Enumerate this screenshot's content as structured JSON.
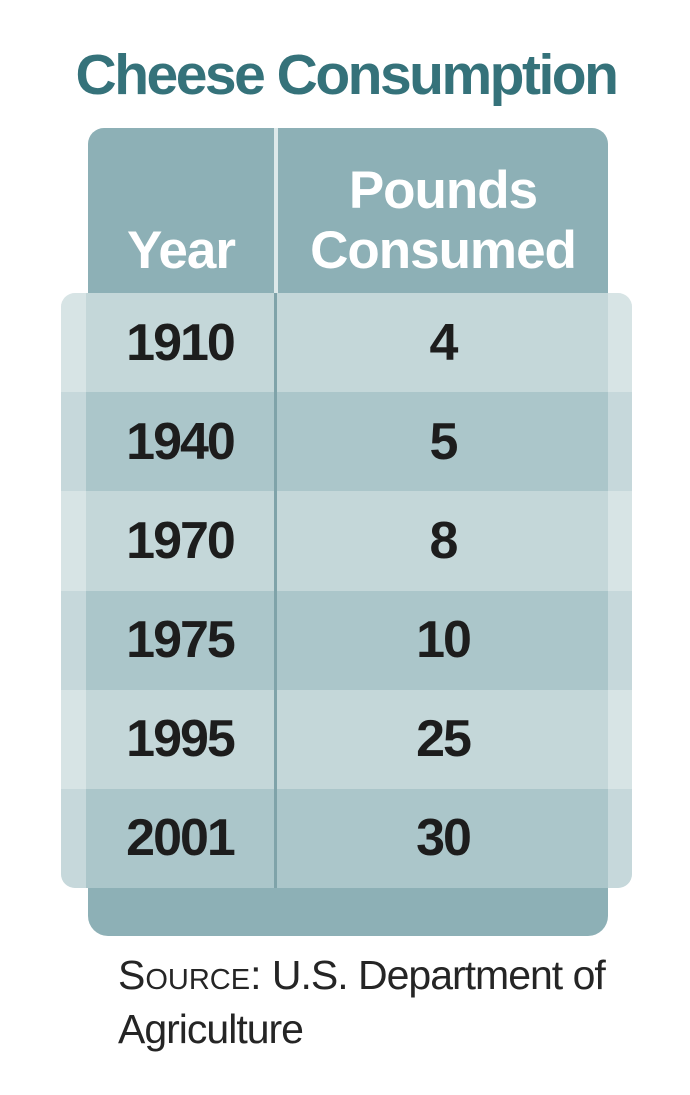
{
  "title": "Cheese Consumption",
  "table": {
    "header": {
      "col1": "Year",
      "col2_line1": "Pounds",
      "col2_line2": "Consumed"
    },
    "rows": [
      {
        "year": "1910",
        "pounds": "4"
      },
      {
        "year": "1940",
        "pounds": "5"
      },
      {
        "year": "1970",
        "pounds": "8"
      },
      {
        "year": "1975",
        "pounds": "10"
      },
      {
        "year": "1995",
        "pounds": "25"
      },
      {
        "year": "2001",
        "pounds": "30"
      }
    ]
  },
  "source": {
    "label": "Source:",
    "text": " U.S. Department of Agriculture"
  },
  "colors": {
    "title_color": "#35727a",
    "header_bg": "#8db0b6",
    "header_divider": "#dde9ea",
    "row_light": "#c4d7d9",
    "row_dark": "#abc6ca",
    "body_divider": "#7fa3a9",
    "row_text": "#1d1d1d",
    "source_text": "#252525"
  },
  "chart_data": {
    "type": "table",
    "title": "Cheese Consumption",
    "columns": [
      "Year",
      "Pounds Consumed"
    ],
    "categories": [
      "1910",
      "1940",
      "1970",
      "1975",
      "1995",
      "2001"
    ],
    "values": [
      4,
      5,
      8,
      10,
      25,
      30
    ],
    "source": "Source: U.S. Department of Agriculture",
    "layout_hints": {
      "striped_rows": true,
      "header_position": "top",
      "accent_color": "#8db0b6"
    }
  }
}
